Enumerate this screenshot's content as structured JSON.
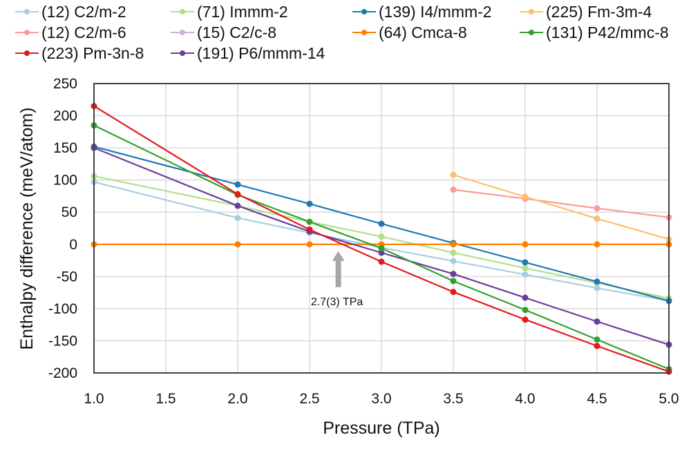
{
  "chart_data": {
    "type": "line",
    "title": "",
    "xlabel": "Pressure (TPa)",
    "ylabel": "Enthalpy difference (meV/atom)",
    "xlim": [
      1.0,
      5.0
    ],
    "ylim": [
      -200,
      250
    ],
    "xticks": [
      "1.0",
      "1.5",
      "2.0",
      "2.5",
      "3.0",
      "3.5",
      "4.0",
      "4.5",
      "5.0"
    ],
    "xtick_values": [
      1.0,
      1.5,
      2.0,
      2.5,
      3.0,
      3.5,
      4.0,
      4.5,
      5.0
    ],
    "yticks": [
      "250",
      "200",
      "150",
      "100",
      "50",
      "0",
      "-50",
      "-100",
      "-150",
      "-200"
    ],
    "ytick_values": [
      250,
      200,
      150,
      100,
      50,
      0,
      -50,
      -100,
      -150,
      -200
    ],
    "grid": true,
    "legend_position": "top",
    "series": [
      {
        "name": "(12) C2/m-2",
        "color": "#a6cee3",
        "x": [
          1.0,
          2.0,
          2.5,
          3.0,
          3.5,
          4.0,
          4.5,
          5.0
        ],
        "y": [
          97,
          41,
          18,
          -5,
          -26,
          -47,
          -68,
          -88
        ]
      },
      {
        "name": "(71) Immm-2",
        "color": "#b2df8a",
        "x": [
          1.0,
          2.0,
          2.5,
          3.0,
          3.5,
          4.0,
          4.5,
          5.0
        ],
        "y": [
          106,
          60,
          35,
          12,
          -13,
          -37,
          -60,
          -84
        ]
      },
      {
        "name": "(139) I4/mmm-2",
        "color": "#1f78b4",
        "x": [
          1.0,
          2.0,
          2.5,
          3.0,
          3.5,
          4.0,
          4.5,
          5.0
        ],
        "y": [
          152,
          93,
          63,
          32,
          2,
          -28,
          -58,
          -88
        ]
      },
      {
        "name": "(225) Fm-3m-4",
        "color": "#fdbf6f",
        "x": [
          3.5,
          4.0,
          4.5,
          5.0
        ],
        "y": [
          108,
          74,
          40,
          8
        ]
      },
      {
        "name": "(12) C2/m-6",
        "color": "#fb9a99",
        "x": [
          3.5,
          4.0,
          4.5,
          5.0
        ],
        "y": [
          85,
          71,
          56,
          42
        ]
      },
      {
        "name": "(15) C2/c-8",
        "color": "#cab2d6",
        "x": [],
        "y": []
      },
      {
        "name": "(64) Cmca-8",
        "color": "#ff7f00",
        "x": [
          1.0,
          2.0,
          2.5,
          3.0,
          3.5,
          4.0,
          4.5,
          5.0
        ],
        "y": [
          0,
          0,
          0,
          0,
          0,
          0,
          0,
          0
        ]
      },
      {
        "name": "(131) P42/mmc-8",
        "color": "#33a02c",
        "x": [
          1.0,
          2.0,
          2.5,
          3.0,
          3.5,
          4.0,
          4.5,
          5.0
        ],
        "y": [
          185,
          77,
          35,
          -6,
          -57,
          -102,
          -148,
          -194
        ]
      },
      {
        "name": "(223) Pm-3n-8",
        "color": "#e31a1c",
        "x": [
          1.0,
          2.0,
          2.5,
          3.0,
          3.5,
          4.0,
          4.5,
          5.0
        ],
        "y": [
          215,
          78,
          23,
          -27,
          -74,
          -117,
          -158,
          -198
        ]
      },
      {
        "name": "(191) P6/mmm-14",
        "color": "#6a3d9a",
        "x": [
          1.0,
          2.0,
          2.5,
          3.0,
          3.5,
          4.0,
          4.5,
          5.0
        ],
        "y": [
          150,
          60,
          20,
          -13,
          -46,
          -83,
          -120,
          -156
        ]
      }
    ],
    "annotations": [
      {
        "text": "2.7(3) TPa",
        "x": 2.7,
        "y": 0,
        "type": "arrow-up",
        "color": "#a6a6a6"
      }
    ]
  }
}
